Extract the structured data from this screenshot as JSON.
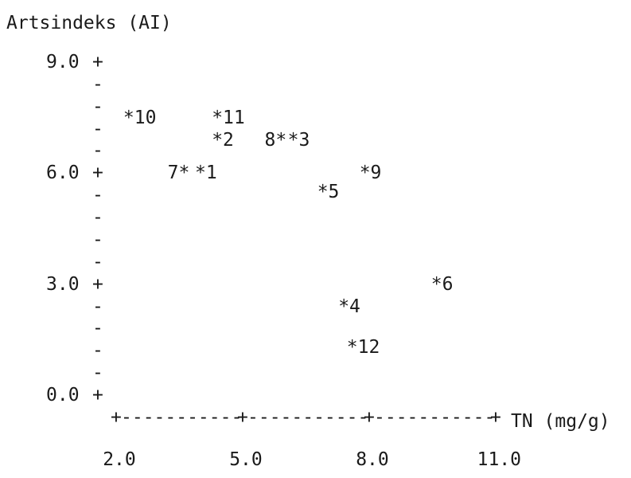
{
  "chart_data": {
    "type": "scatter",
    "title": "",
    "ylabel": "Artsindeks (AI)",
    "xlabel": "TN (mg/g)",
    "xlim": [
      2.0,
      11.0
    ],
    "ylim": [
      0.0,
      9.0
    ],
    "x_ticks": [
      "2.0",
      "5.0",
      "8.0",
      "11.0"
    ],
    "y_ticks": [
      "9.0",
      "6.0",
      "3.0",
      "0.0"
    ],
    "y_axis_glyph": "+",
    "y_minor_glyph": "-",
    "x_axis_glyph": "+",
    "x_minor_glyph": "-",
    "grid": false,
    "marker_glyph": "*",
    "points": [
      {
        "label": "10",
        "x": 2.3,
        "y": 7.5
      },
      {
        "label": "11",
        "x": 4.4,
        "y": 7.5
      },
      {
        "label": "2",
        "x": 4.4,
        "y": 6.9
      },
      {
        "label": "8",
        "x": 5.9,
        "y": 6.9
      },
      {
        "label": "3",
        "x": 6.2,
        "y": 6.9
      },
      {
        "label": "7",
        "x": 3.6,
        "y": 6.0
      },
      {
        "label": "1",
        "x": 4.0,
        "y": 6.0
      },
      {
        "label": "9",
        "x": 7.9,
        "y": 6.0
      },
      {
        "label": "5",
        "x": 6.9,
        "y": 5.5
      },
      {
        "label": "6",
        "x": 9.6,
        "y": 3.0
      },
      {
        "label": "4",
        "x": 7.4,
        "y": 2.4
      },
      {
        "label": "12",
        "x": 7.6,
        "y": 1.3
      }
    ]
  }
}
